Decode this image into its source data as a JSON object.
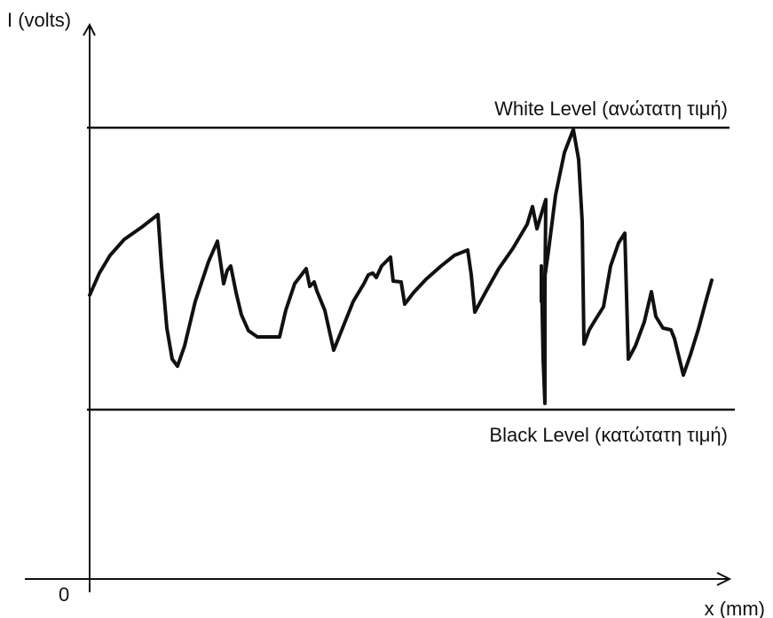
{
  "axes": {
    "y_label": "I (volts)",
    "x_label": "x (mm)",
    "origin_label": "0"
  },
  "levels": {
    "white": "White Level (ανώτατη τιμή)",
    "black": "Black Level (κατώτατη τιμή)"
  },
  "colors": {
    "ink": "#111111",
    "background": "#ffffff"
  }
}
